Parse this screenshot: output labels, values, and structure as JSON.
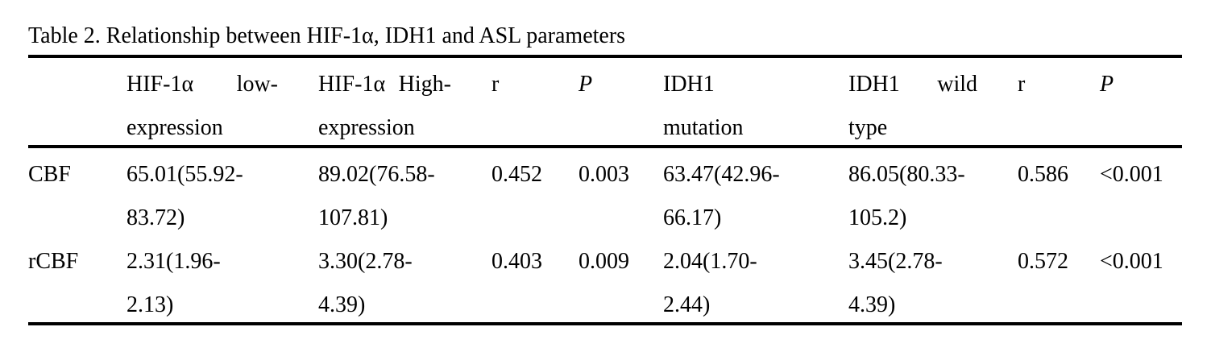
{
  "title": "Table 2. Relationship between HIF-1α, IDH1 and ASL parameters",
  "header": {
    "c1": {
      "w1": "HIF-1α",
      "w2": "low-",
      "line2": "expression"
    },
    "c2": {
      "w1": "HIF-1α",
      "w2": "High-",
      "line2": "expression"
    },
    "c3": "r",
    "c4": "P",
    "c5": {
      "line1": "IDH1",
      "line2": "mutation"
    },
    "c6": {
      "w1": "IDH1",
      "w2": "wild",
      "line2": "type"
    },
    "c7": "r",
    "c8": "P"
  },
  "rows": {
    "cbf": {
      "label": "CBF",
      "c1": {
        "line1": "65.01(55.92-",
        "line2": "83.72)"
      },
      "c2": {
        "line1": "89.02(76.58-",
        "line2": "107.81)"
      },
      "c3": "0.452",
      "c4": "0.003",
      "c5": {
        "line1": "63.47(42.96-",
        "line2": "66.17)"
      },
      "c6": {
        "line1": "86.05(80.33-",
        "line2": "105.2)"
      },
      "c7": "0.586",
      "c8": "<0.001"
    },
    "rcbf": {
      "label": "rCBF",
      "c1": {
        "line1": "2.31(1.96-",
        "line2": "2.13)"
      },
      "c2": {
        "line1": "3.30(2.78-",
        "line2": "4.39)"
      },
      "c3": "0.403",
      "c4": "0.009",
      "c5": {
        "line1": "2.04(1.70-",
        "line2": "2.44)"
      },
      "c6": {
        "line1": "3.45(2.78-",
        "line2": "4.39)"
      },
      "c7": "0.572",
      "c8": "<0.001"
    }
  },
  "colors": {
    "text": "#000000",
    "rule": "#000000",
    "background": "#ffffff"
  }
}
